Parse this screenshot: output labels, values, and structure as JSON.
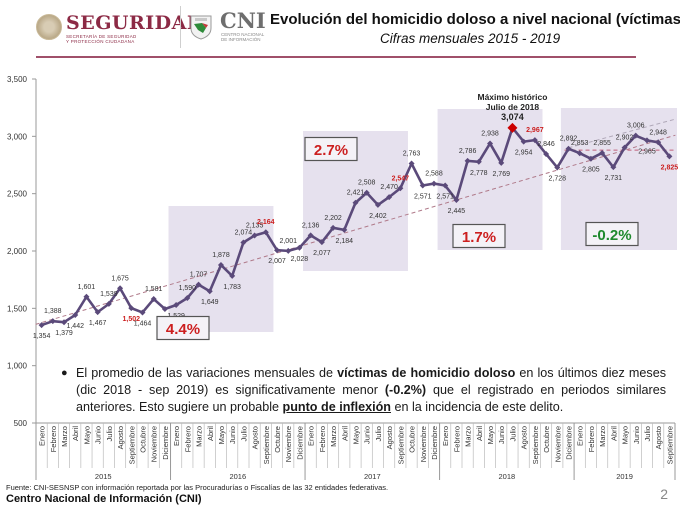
{
  "header": {
    "seguridad_title": "SEGURIDAD",
    "seguridad_subtitle_line1": "SECRETARÍA DE SEGURIDAD",
    "seguridad_subtitle_line2": "Y PROTECCIÓN CIUDADANA",
    "cni_title": "CNI",
    "cni_subtitle_line1": "CENTRO NACIONAL",
    "cni_subtitle_line2": "DE INFORMACIÓN",
    "title": "Evolución del homicidio doloso a nivel nacional (víctimas)",
    "subtitle": "Cifras mensuales 2015 - 2019",
    "accent_color": "#8c2a45"
  },
  "chart_data": {
    "type": "line",
    "title": "Evolución del homicidio doloso a nivel nacional (víctimas)",
    "subtitle": "Cifras mensuales 2015 - 2019",
    "xlabel": "",
    "ylabel": "",
    "ylim": [
      500,
      3500
    ],
    "yticks": [
      500,
      1000,
      1500,
      2000,
      2500,
      3000,
      3500
    ],
    "ytick_labels": [
      "500",
      "1,000",
      "1,500",
      "2,000",
      "2,500",
      "3,000",
      "3,500"
    ],
    "grid": false,
    "months": [
      "Enero",
      "Febrero",
      "Marzo",
      "Abril",
      "Mayo",
      "Junio",
      "Julio",
      "Agosto",
      "Septiembre",
      "Octubre",
      "Noviembre",
      "Diciembre"
    ],
    "years": [
      "2015",
      "2016",
      "2017",
      "2018",
      "2019"
    ],
    "series": [
      {
        "name": "Víctimas de homicidio doloso",
        "color": "#5b4a7a",
        "values": [
          1354,
          1388,
          1379,
          1442,
          1601,
          1467,
          1539,
          1675,
          1502,
          1464,
          1581,
          1494,
          1529,
          1590,
          1707,
          1649,
          1878,
          1783,
          2074,
          2135,
          2164,
          2007,
          2001,
          2028,
          2136,
          2077,
          2202,
          2184,
          2421,
          2508,
          2402,
          2470,
          2547,
          2763,
          2571,
          2588,
          2571,
          2445,
          2786,
          2778,
          2938,
          2769,
          3074,
          2954,
          2967,
          2846,
          2728,
          2892,
          2853,
          2805,
          2855,
          2731,
          2902,
          3006,
          2965,
          2948,
          2825
        ]
      }
    ],
    "highlighted_labels": [
      8,
      20,
      32,
      44,
      56
    ],
    "highlight_color": "#cc1f1f",
    "peak": {
      "index": 42,
      "value": 3074,
      "label_line1": "Máximo histórico",
      "label_line2": "Julio de 2018",
      "value_label": "3,074",
      "color": "#cc0000"
    },
    "periods": [
      {
        "start": 12,
        "end": 20,
        "label": "4.4%",
        "color": "#cc1f1f"
      },
      {
        "start": 24,
        "end": 32,
        "label": "2.7%",
        "color": "#cc1f1f"
      },
      {
        "start": 36,
        "end": 44,
        "label": "1.7%",
        "color": "#cc1f1f"
      },
      {
        "start": 47,
        "end": 56,
        "label": "-0.2%",
        "color": "#1f8a2e"
      }
    ],
    "trendline": {
      "from": [
        0,
        1360
      ],
      "to": [
        56,
        3010
      ],
      "color": "#b07a8a"
    },
    "trendline_2019": {
      "from": [
        47,
        2900
      ],
      "to": [
        56,
        3150
      ],
      "color": "#b0a8b8"
    },
    "reference_2019": {
      "value": 2880,
      "start": 47,
      "end": 56,
      "color": "#c0607a"
    },
    "shade_color": "#e6e1ee"
  },
  "note": {
    "part1": "El promedio de las variaciones mensuales de ",
    "bold1": "víctimas de homicidio doloso",
    "part2": " en los últimos diez meses (dic 2018 - sep 2019) es significativamente menor ",
    "bold2": "(-0.2%)",
    "part3": " que el registrado en periodos similares anteriores. Esto sugiere un probable ",
    "underline": "punto de inflexión",
    "part4": " en la incidencia de este delito."
  },
  "footer": {
    "source": "Fuente: CNI-SESNSP  con información reportada por las Procuradurías o Fiscalías de las 32 entidades federativas.",
    "org": "Centro Nacional de Información (CNI)",
    "page_number": "2"
  }
}
